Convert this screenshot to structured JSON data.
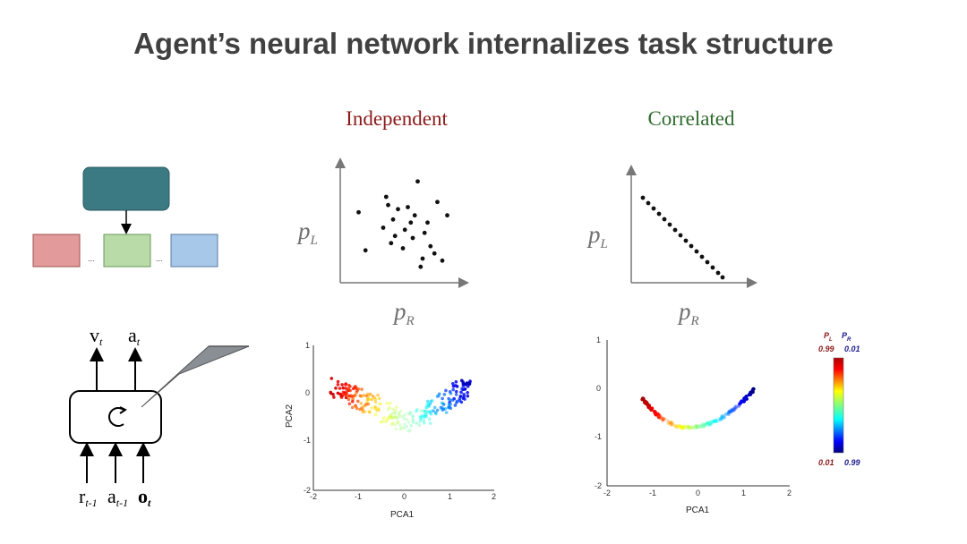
{
  "title": "Agent’s neural network internalizes task structure",
  "panels": {
    "independent": {
      "title": "Independent",
      "color": "#8b1a1a"
    },
    "correlated": {
      "title": "Correlated",
      "color": "#2e6b2e"
    }
  },
  "axes": {
    "y_symbol": "p",
    "y_sub": "L",
    "x_symbol": "p",
    "x_sub": "R"
  },
  "hierarchy_diagram": {
    "ellipsis": "..."
  },
  "rnn": {
    "outputs": [
      {
        "base": "v",
        "sub": "t"
      },
      {
        "base": "a",
        "sub": "t"
      }
    ],
    "inputs": [
      {
        "base": "r",
        "sub": "t-1"
      },
      {
        "base": "a",
        "sub": "t-1"
      },
      {
        "base": "o",
        "sub": "t"
      }
    ]
  },
  "colorbar": {
    "header_left": "P",
    "header_left_sub": "L",
    "header_right": "P",
    "header_right_sub": "R",
    "top_left": "0.99",
    "top_right": "0.01",
    "bottom_left": "0.01",
    "bottom_right": "0.99"
  },
  "chart_data": [
    {
      "type": "scatter",
      "name_ref": "independent_schematic",
      "points": [
        [
          0.05,
          0.65
        ],
        [
          0.12,
          0.28
        ],
        [
          0.3,
          0.5
        ],
        [
          0.33,
          0.8
        ],
        [
          0.35,
          0.72
        ],
        [
          0.4,
          0.58
        ],
        [
          0.42,
          0.42
        ],
        [
          0.5,
          0.3
        ],
        [
          0.55,
          0.7
        ],
        [
          0.58,
          0.55
        ],
        [
          0.6,
          0.4
        ],
        [
          0.62,
          0.62
        ],
        [
          0.65,
          0.95
        ],
        [
          0.7,
          0.2
        ],
        [
          0.72,
          0.45
        ],
        [
          0.75,
          0.55
        ],
        [
          0.78,
          0.32
        ],
        [
          0.82,
          0.25
        ],
        [
          0.85,
          0.75
        ],
        [
          0.9,
          0.18
        ],
        [
          0.95,
          0.62
        ],
        [
          0.45,
          0.68
        ],
        [
          0.52,
          0.48
        ],
        [
          0.38,
          0.35
        ],
        [
          0.68,
          0.12
        ]
      ],
      "xlabel": "",
      "ylabel": ""
    },
    {
      "type": "scatter",
      "name_ref": "correlated_schematic",
      "points": [
        [
          0.08,
          0.92
        ],
        [
          0.14,
          0.86
        ],
        [
          0.2,
          0.8
        ],
        [
          0.26,
          0.74
        ],
        [
          0.32,
          0.68
        ],
        [
          0.38,
          0.62
        ],
        [
          0.44,
          0.56
        ],
        [
          0.5,
          0.5
        ],
        [
          0.56,
          0.44
        ],
        [
          0.62,
          0.38
        ],
        [
          0.68,
          0.32
        ],
        [
          0.74,
          0.26
        ],
        [
          0.8,
          0.2
        ],
        [
          0.86,
          0.14
        ],
        [
          0.92,
          0.08
        ],
        [
          0.97,
          0.03
        ]
      ],
      "xlabel": "",
      "ylabel": ""
    },
    {
      "type": "scatter",
      "name_ref": "independent_pca",
      "xlabel": "PCA1",
      "ylabel": "PCA2",
      "xlim": [
        -2,
        2
      ],
      "ylim": [
        -2,
        1
      ],
      "xticks": [
        "-2",
        "-1",
        "0",
        "1",
        "2"
      ],
      "yticks": [
        "1",
        "0",
        "-1",
        "-2"
      ]
    },
    {
      "type": "scatter",
      "name_ref": "correlated_pca",
      "xlabel": "PCA1",
      "ylabel": "",
      "xlim": [
        -2,
        2
      ],
      "ylim": [
        -2,
        1
      ],
      "xticks": [
        "-2",
        "-1",
        "0",
        "1",
        "2"
      ],
      "yticks": [
        "1",
        "0",
        "-1",
        "-2"
      ]
    }
  ]
}
